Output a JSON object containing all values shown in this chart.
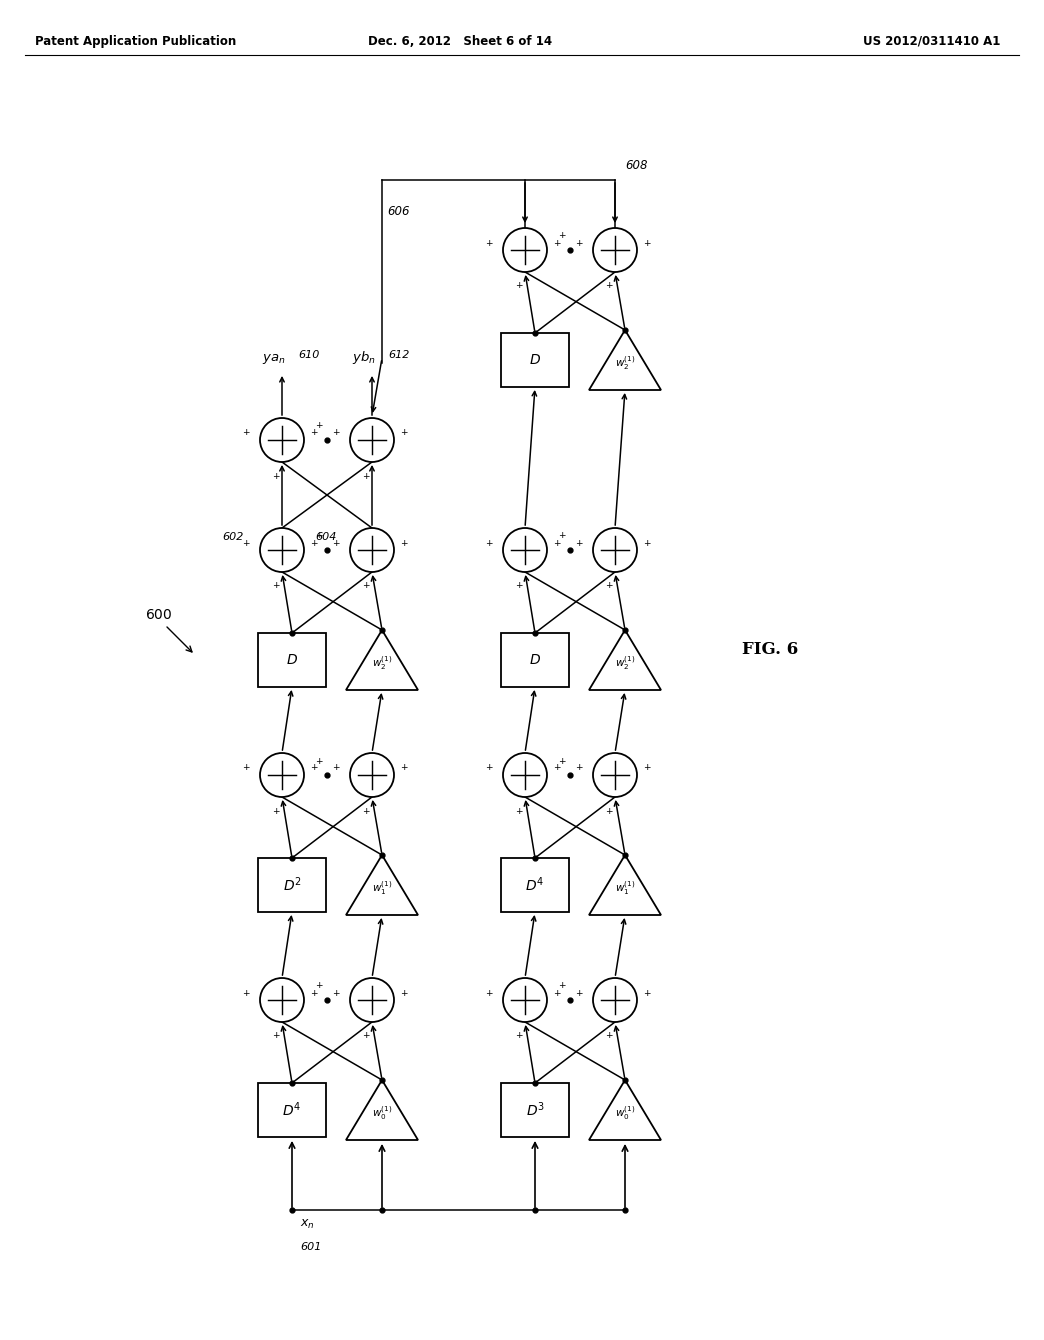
{
  "title": "FIG. 6",
  "header_left": "Patent Application Publication",
  "header_center": "Dec. 6, 2012   Sheet 6 of 14",
  "header_right": "US 2012/0311410 A1",
  "background_color": "#ffffff",
  "line_color": "#000000",
  "fig_label": "600",
  "input_label": "x_n",
  "input_ref": "601",
  "output_ref_a": "610",
  "output_ref_b": "612",
  "ref_602": "602",
  "ref_604": "604",
  "ref_606": "606",
  "ref_608": "608"
}
